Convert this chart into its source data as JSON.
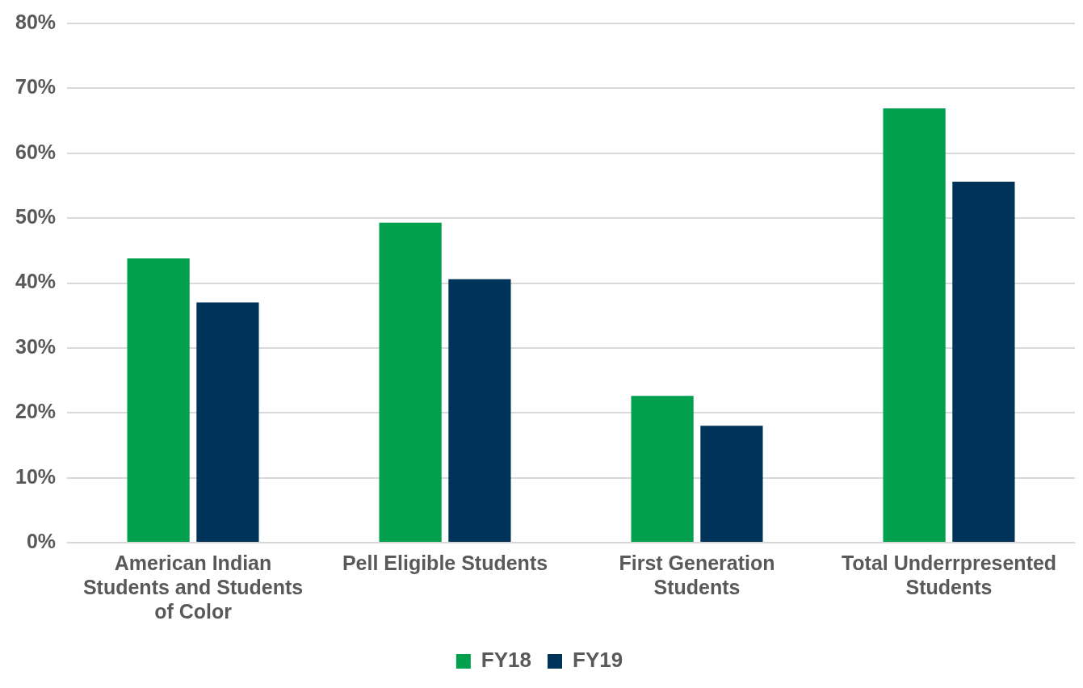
{
  "chart_data": {
    "type": "bar",
    "categories": [
      "American Indian Students and Students of Color",
      "Pell Eligible Students",
      "First Generation Students",
      "Total Underrpresented Students"
    ],
    "series": [
      {
        "name": "FY18",
        "color": "#00a04f",
        "values": [
          43.8,
          49.3,
          22.6,
          66.9
        ]
      },
      {
        "name": "FY19",
        "color": "#003359",
        "values": [
          37.0,
          40.6,
          18.0,
          55.6
        ]
      }
    ],
    "ylim": [
      0,
      80
    ],
    "yticks": [
      {
        "value": 0,
        "label": "0%"
      },
      {
        "value": 10,
        "label": "10%"
      },
      {
        "value": 20,
        "label": "20%"
      },
      {
        "value": 30,
        "label": "30%"
      },
      {
        "value": 40,
        "label": "40%"
      },
      {
        "value": 50,
        "label": "50%"
      },
      {
        "value": 60,
        "label": "60%"
      },
      {
        "value": 70,
        "label": "70%"
      },
      {
        "value": 80,
        "label": "80%"
      }
    ],
    "grid": "y",
    "legend": "bottom"
  }
}
